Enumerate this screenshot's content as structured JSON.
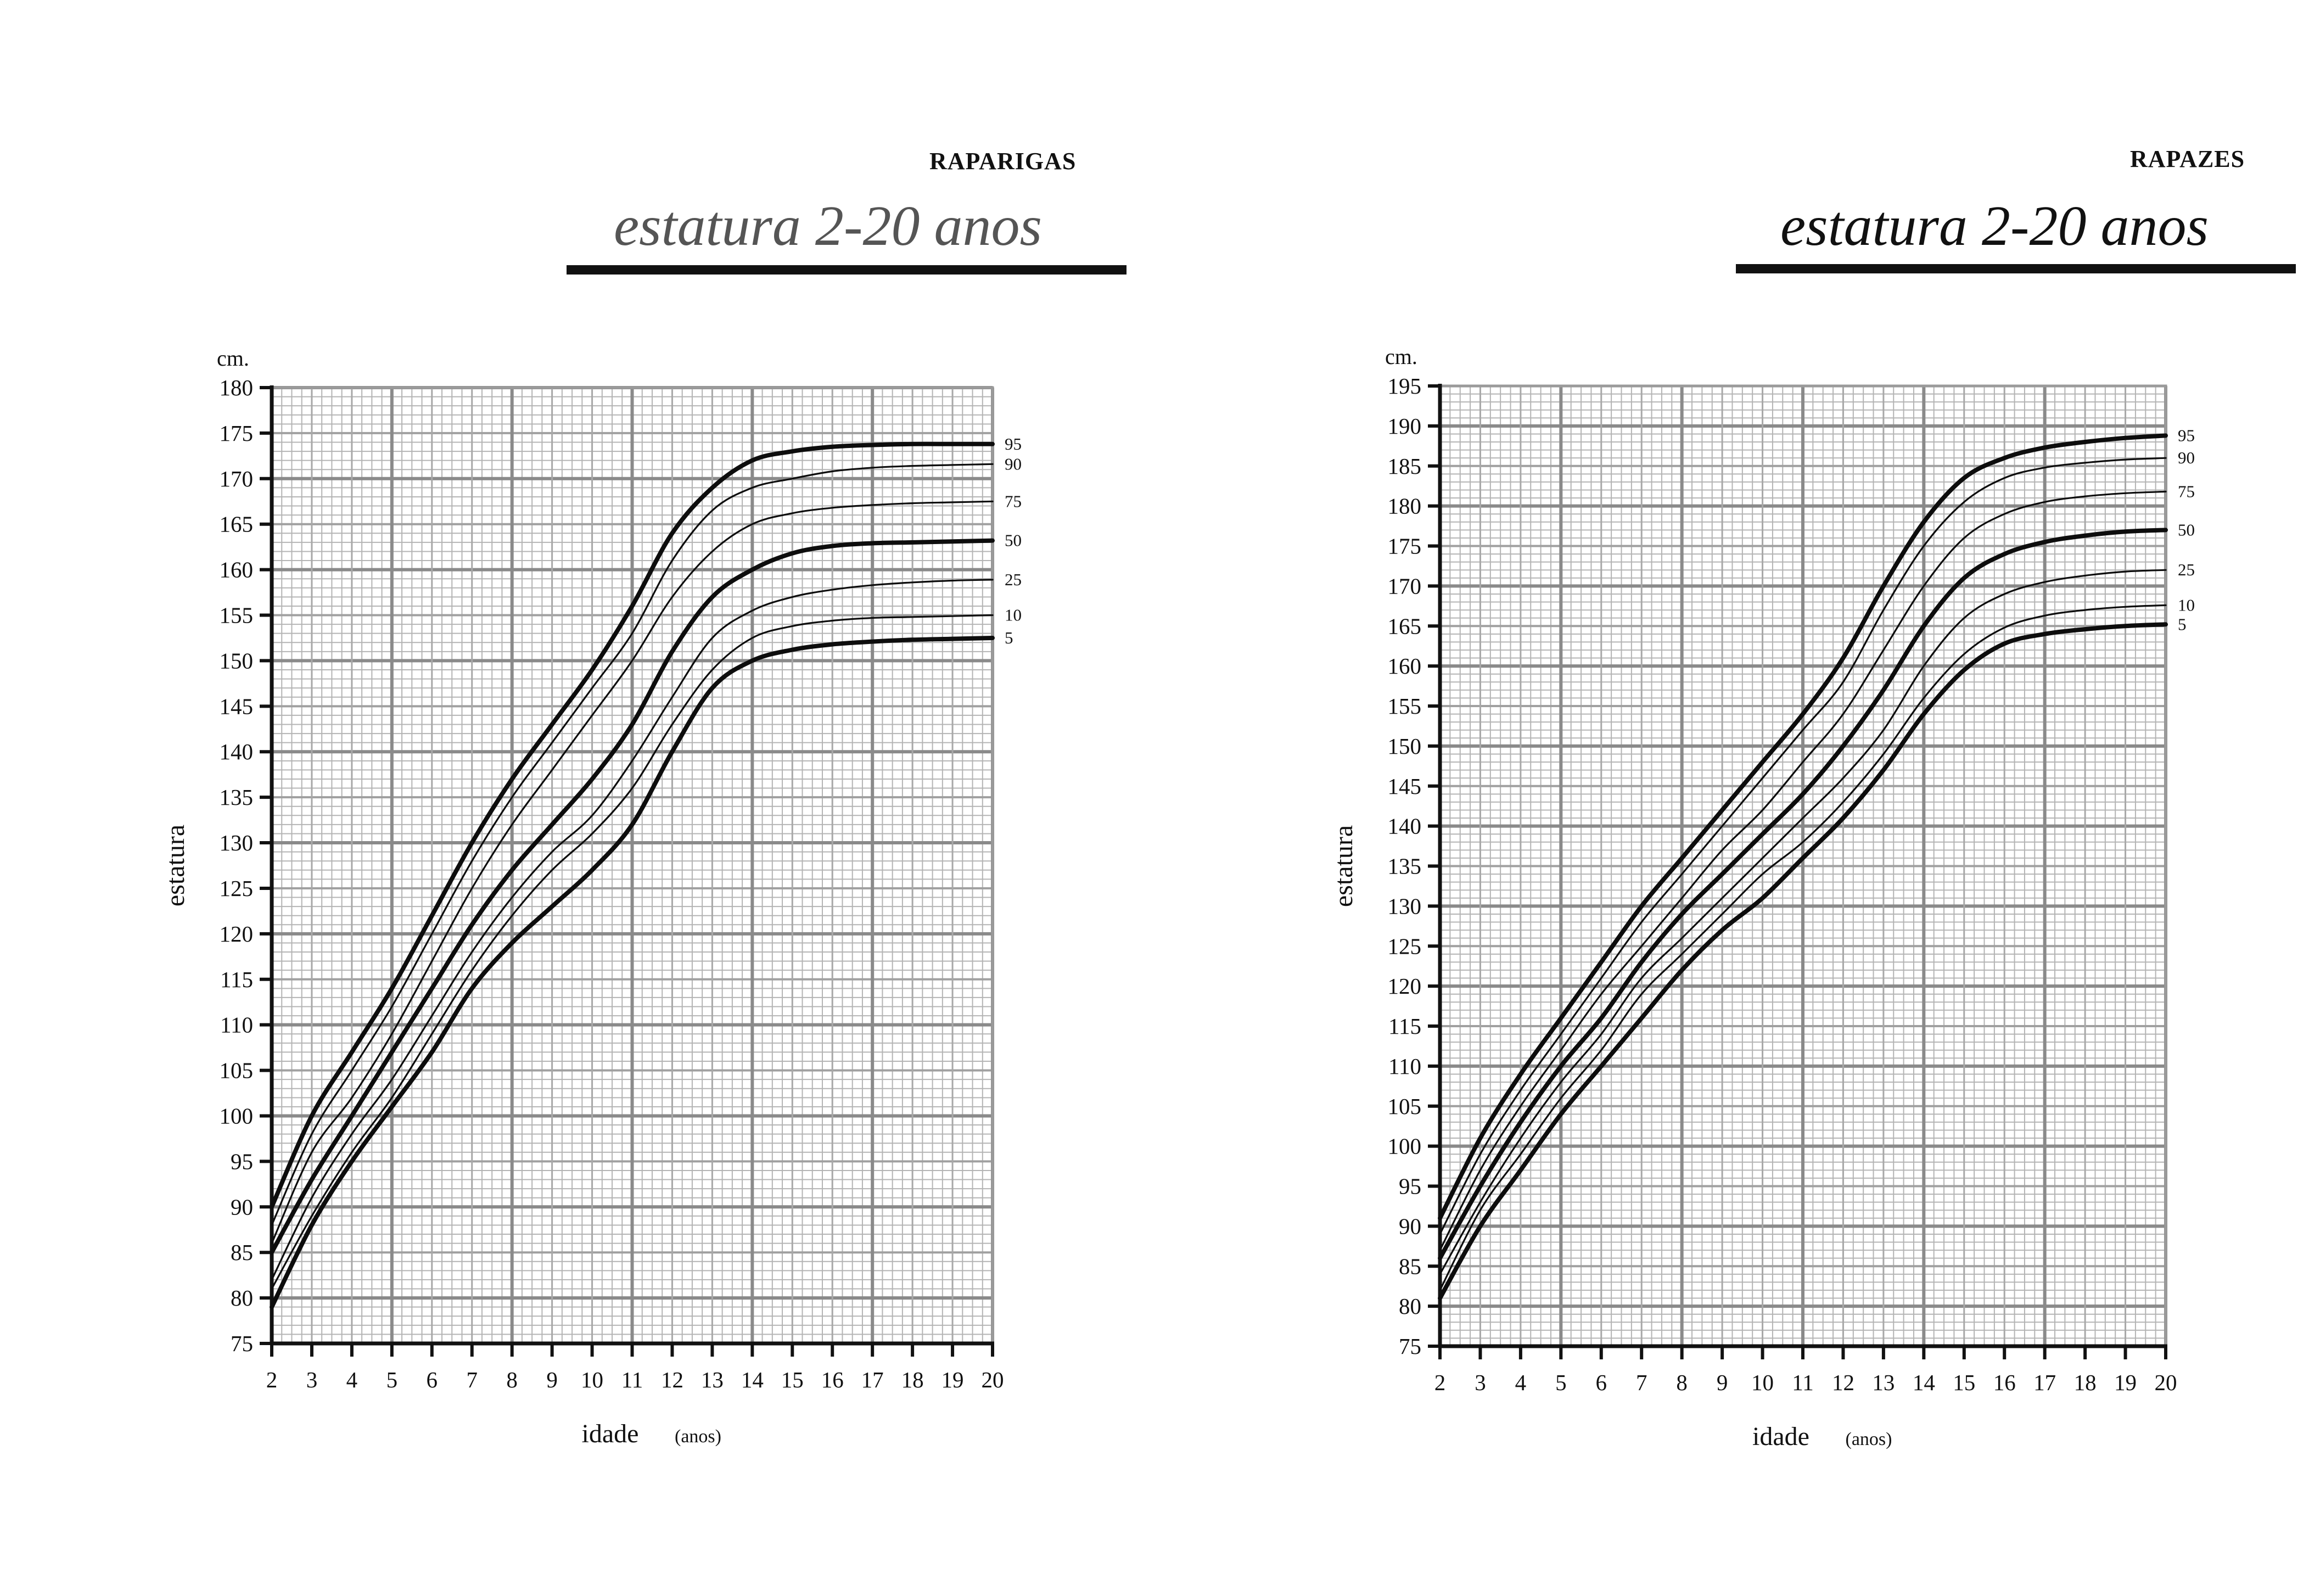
{
  "charts": [
    {
      "key": "girls",
      "sex_label": "RAPARIGAS",
      "title": "estatura 2-20 anos",
      "title_color": "#555555",
      "unit_label": "cm.",
      "ylabel": "estatura",
      "xlabel_main": "idade",
      "xlabel_sub": "(anos)"
    },
    {
      "key": "boys",
      "sex_label": "RAPAZES",
      "title": "estatura 2-20 anos",
      "title_color": "#111111",
      "unit_label": "cm.",
      "ylabel": "estatura",
      "xlabel_main": "idade",
      "xlabel_sub": "(anos)"
    }
  ],
  "chart_data": [
    {
      "type": "line",
      "title": "estatura 2-20 anos",
      "subtitle": "RAPARIGAS",
      "xlabel": "idade (anos)",
      "ylabel": "estatura",
      "unit": "cm.",
      "xlim": [
        2,
        20
      ],
      "ylim": [
        75,
        180
      ],
      "xticks": [
        2,
        3,
        4,
        5,
        6,
        7,
        8,
        9,
        10,
        11,
        12,
        13,
        14,
        15,
        16,
        17,
        18,
        19,
        20
      ],
      "yticks": [
        75,
        80,
        85,
        90,
        95,
        100,
        105,
        110,
        115,
        120,
        125,
        130,
        135,
        140,
        145,
        150,
        155,
        160,
        165,
        170,
        175,
        180
      ],
      "grid": true,
      "x": [
        2,
        3,
        4,
        5,
        6,
        7,
        8,
        9,
        10,
        11,
        12,
        13,
        14,
        15,
        16,
        17,
        18,
        19,
        20
      ],
      "series": [
        {
          "name": "95",
          "bold": true,
          "values": [
            90,
            100,
            107,
            114,
            122,
            130,
            137,
            143,
            149,
            156,
            164,
            169,
            172,
            173,
            173.5,
            173.7,
            173.8,
            173.8,
            173.8
          ]
        },
        {
          "name": "90",
          "bold": false,
          "values": [
            88,
            98,
            105,
            112,
            120,
            128,
            135,
            141,
            147,
            153,
            161,
            166.5,
            169,
            170,
            170.8,
            171.2,
            171.4,
            171.5,
            171.6
          ]
        },
        {
          "name": "75",
          "bold": false,
          "values": [
            86,
            96,
            102,
            109,
            117,
            125,
            132,
            138,
            144,
            150,
            157,
            162,
            165,
            166.2,
            166.8,
            167.1,
            167.3,
            167.4,
            167.5
          ]
        },
        {
          "name": "50",
          "bold": true,
          "values": [
            85,
            93,
            100,
            107,
            114,
            121,
            127,
            132,
            137,
            143,
            151,
            157,
            160,
            161.8,
            162.6,
            162.9,
            163,
            163.1,
            163.2
          ]
        },
        {
          "name": "25",
          "bold": false,
          "values": [
            82,
            91,
            98,
            104,
            111,
            118,
            124,
            129,
            133,
            139,
            146,
            152.5,
            155.5,
            157,
            157.8,
            158.3,
            158.6,
            158.8,
            158.9
          ]
        },
        {
          "name": "10",
          "bold": false,
          "values": [
            81,
            89,
            96,
            102,
            109,
            116,
            122,
            127,
            131,
            136,
            143,
            149,
            152.5,
            153.8,
            154.4,
            154.7,
            154.8,
            154.9,
            155
          ]
        },
        {
          "name": "5",
          "bold": true,
          "values": [
            79,
            88,
            95,
            101,
            107,
            114,
            119,
            123,
            127,
            132,
            140,
            147,
            150,
            151.2,
            151.8,
            152.1,
            152.3,
            152.4,
            152.5
          ]
        }
      ]
    },
    {
      "type": "line",
      "title": "estatura 2-20 anos",
      "subtitle": "RAPAZES",
      "xlabel": "idade (anos)",
      "ylabel": "estatura",
      "unit": "cm.",
      "xlim": [
        2,
        20
      ],
      "ylim": [
        75,
        195
      ],
      "xticks": [
        2,
        3,
        4,
        5,
        6,
        7,
        8,
        9,
        10,
        11,
        12,
        13,
        14,
        15,
        16,
        17,
        18,
        19,
        20
      ],
      "yticks": [
        75,
        80,
        85,
        90,
        95,
        100,
        105,
        110,
        115,
        120,
        125,
        130,
        135,
        140,
        145,
        150,
        155,
        160,
        165,
        170,
        175,
        180,
        185,
        190,
        195
      ],
      "grid": true,
      "x": [
        2,
        3,
        4,
        5,
        6,
        7,
        8,
        9,
        10,
        11,
        12,
        13,
        14,
        15,
        16,
        17,
        18,
        19,
        20
      ],
      "series": [
        {
          "name": "95",
          "bold": true,
          "values": [
            91,
            101,
            109,
            116,
            123,
            130,
            136,
            142,
            148,
            154,
            161,
            170,
            178,
            183.5,
            186,
            187.3,
            188,
            188.5,
            188.8
          ]
        },
        {
          "name": "90",
          "bold": false,
          "values": [
            89,
            99,
            107,
            114,
            121,
            128,
            134,
            140,
            146,
            152,
            158,
            167,
            175,
            180.5,
            183.5,
            184.8,
            185.4,
            185.8,
            186
          ]
        },
        {
          "name": "75",
          "bold": false,
          "values": [
            87,
            97,
            105,
            112,
            119,
            125,
            131,
            137,
            142,
            148,
            154,
            162,
            170,
            176,
            179,
            180.5,
            181.2,
            181.6,
            181.8
          ]
        },
        {
          "name": "50",
          "bold": true,
          "values": [
            86,
            95,
            103,
            110,
            116,
            123,
            129,
            134,
            139,
            144,
            150,
            157,
            165,
            171,
            174,
            175.5,
            176.3,
            176.8,
            177
          ]
        },
        {
          "name": "25",
          "bold": false,
          "values": [
            84,
            93,
            101,
            108,
            114,
            121,
            126,
            131,
            136,
            141,
            146,
            152,
            160,
            166,
            169,
            170.5,
            171.3,
            171.8,
            172
          ]
        },
        {
          "name": "10",
          "bold": false,
          "values": [
            82,
            92,
            99,
            106,
            112,
            119,
            124,
            129,
            134,
            138,
            143,
            149,
            156,
            161.5,
            164.8,
            166.3,
            167,
            167.4,
            167.6
          ]
        },
        {
          "name": "5",
          "bold": true,
          "values": [
            81,
            90,
            97,
            104,
            110,
            116,
            122,
            127,
            131,
            136,
            141,
            147,
            154,
            159.5,
            162.8,
            164,
            164.6,
            165,
            165.2
          ]
        }
      ]
    }
  ]
}
